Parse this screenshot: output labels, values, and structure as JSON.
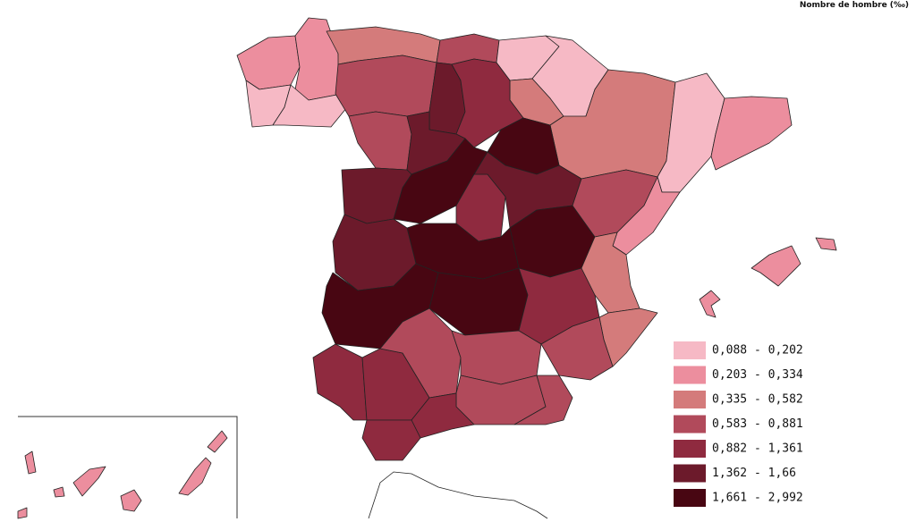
{
  "title": "Nombre de hombre (‰)",
  "legend": [
    {
      "label": "0,088 - 0,202",
      "color": "#f6b9c5"
    },
    {
      "label": "0,203 - 0,334",
      "color": "#ec8e9e"
    },
    {
      "label": "0,335 - 0,582",
      "color": "#d47b7b"
    },
    {
      "label": "0,583 - 0,881",
      "color": "#b14a5b"
    },
    {
      "label": "0,882 - 1,361",
      "color": "#8f2a3f"
    },
    {
      "label": "1,362 - 1,66",
      "color": "#6c1a2b"
    },
    {
      "label": "1,661 - 2,992",
      "color": "#480612"
    }
  ]
}
